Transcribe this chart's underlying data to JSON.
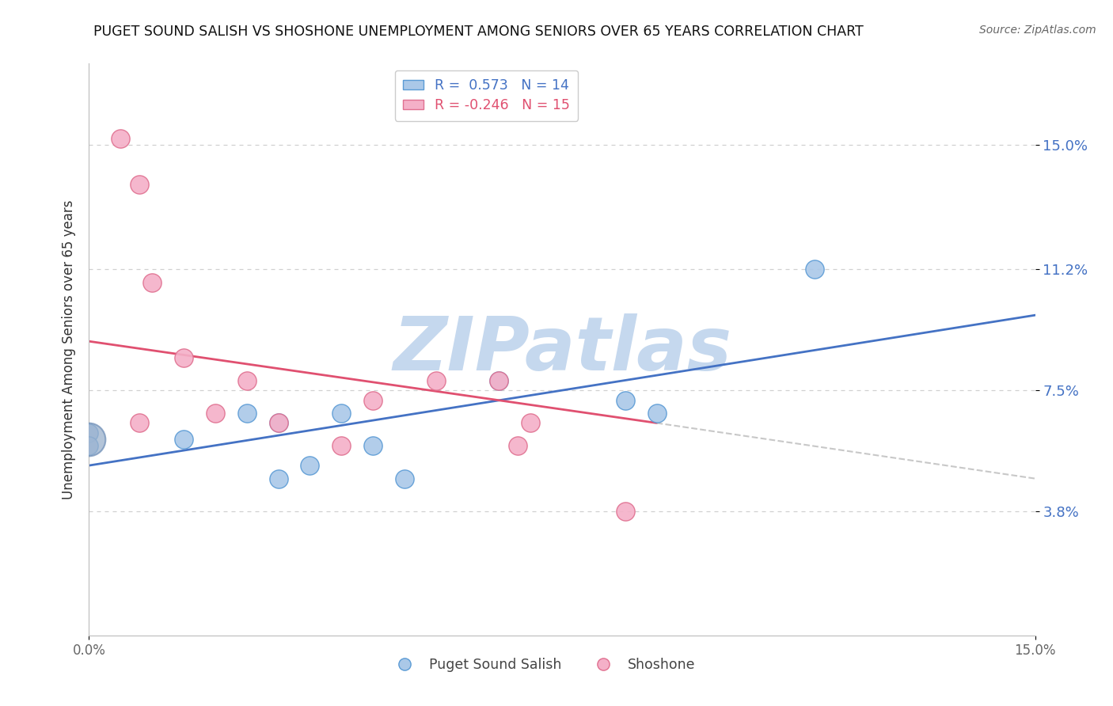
{
  "title": "PUGET SOUND SALISH VS SHOSHONE UNEMPLOYMENT AMONG SENIORS OVER 65 YEARS CORRELATION CHART",
  "source": "Source: ZipAtlas.com",
  "xmin": 0.0,
  "xmax": 15.0,
  "ymin": 0.0,
  "ymax": 17.5,
  "yticks": [
    3.8,
    7.5,
    11.2,
    15.0
  ],
  "ytick_labels": [
    "3.8%",
    "7.5%",
    "11.2%",
    "15.0%"
  ],
  "xticks": [
    0.0,
    15.0
  ],
  "xtick_labels": [
    "0.0%",
    "15.0%"
  ],
  "blue_R": 0.573,
  "blue_N": 14,
  "pink_R": -0.246,
  "pink_N": 15,
  "blue_dot_color": "#aac8e8",
  "blue_dot_edge": "#5b9bd5",
  "pink_dot_color": "#f4b0c8",
  "pink_dot_edge": "#e07090",
  "blue_line_color": "#4472c4",
  "pink_line_color": "#e05070",
  "dash_line_color": "#c8c8c8",
  "grid_color": "#d0d0d0",
  "background": "#ffffff",
  "ylabel": "Unemployment Among Seniors over 65 years",
  "legend_blue": "Puget Sound Salish",
  "legend_pink": "Shoshone",
  "blue_x": [
    0.0,
    0.0,
    1.5,
    2.5,
    3.0,
    3.5,
    4.0,
    4.5,
    5.0,
    6.5,
    8.5,
    9.0,
    11.5,
    3.0
  ],
  "blue_y": [
    6.2,
    5.8,
    6.0,
    6.8,
    6.5,
    5.2,
    6.8,
    5.8,
    4.8,
    7.8,
    7.2,
    6.8,
    11.2,
    4.8
  ],
  "blue_large_x": [
    0.0
  ],
  "blue_large_y": [
    6.0
  ],
  "pink_x": [
    0.5,
    0.8,
    1.0,
    1.5,
    2.0,
    2.5,
    3.0,
    4.0,
    5.5,
    6.5,
    7.0,
    8.5,
    4.5,
    0.8,
    6.8
  ],
  "pink_y": [
    15.2,
    13.8,
    10.8,
    8.5,
    6.8,
    7.8,
    6.5,
    5.8,
    7.8,
    7.8,
    6.5,
    3.8,
    7.2,
    6.5,
    5.8
  ],
  "blue_line_x0": 0.0,
  "blue_line_x1": 15.0,
  "blue_line_y0": 5.2,
  "blue_line_y1": 9.8,
  "pink_line_x0": 0.0,
  "pink_line_x1": 9.0,
  "pink_line_y0": 9.0,
  "pink_line_y1": 6.5,
  "pink_dash_x0": 9.0,
  "pink_dash_x1": 15.0,
  "pink_dash_y0": 6.5,
  "pink_dash_y1": 4.8,
  "watermark": "ZIPatlas",
  "watermark_color": "#c5d8ee",
  "dot_size": 280,
  "large_dot_size": 900
}
